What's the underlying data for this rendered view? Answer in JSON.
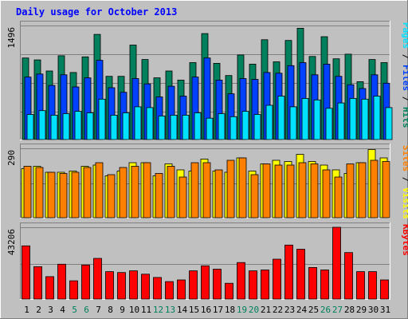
{
  "title": "Daily usage for October 2013",
  "colors": {
    "hits": "#00805c",
    "files": "#0040ff",
    "pages": "#00e0ff",
    "visits": "#ffff00",
    "sites": "#ff8000",
    "kbytes": "#ff0000",
    "title": "#0000ff",
    "weekend": "#00805c",
    "background": "#c0c0c0",
    "plot_background": "#c0c0c0"
  },
  "legend": {
    "top": [
      {
        "label": "Pages",
        "color": "#00e0ff"
      },
      {
        "label": " / ",
        "color": "#000000"
      },
      {
        "label": "Files",
        "color": "#0040ff"
      },
      {
        "label": " / ",
        "color": "#000000"
      },
      {
        "label": "Hits",
        "color": "#00805c"
      }
    ],
    "middle": [
      {
        "label": "Sites",
        "color": "#ff8000"
      },
      {
        "label": " / ",
        "color": "#000000"
      },
      {
        "label": "Visits",
        "color": "#ffff00"
      }
    ],
    "bottom": [
      {
        "label": "KBytes",
        "color": "#ff0000"
      }
    ]
  },
  "chart_data": [
    {
      "type": "bar",
      "name": "hits-files-pages",
      "ymax_label": "1496",
      "ylim": [
        0,
        1496
      ],
      "x": [
        1,
        2,
        3,
        4,
        5,
        6,
        7,
        8,
        9,
        10,
        11,
        12,
        13,
        14,
        15,
        16,
        17,
        18,
        19,
        20,
        21,
        22,
        23,
        24,
        25,
        26,
        27,
        28,
        29,
        30,
        31
      ],
      "weekend_days": [
        5,
        6,
        12,
        13,
        19,
        20,
        26,
        27
      ],
      "series": [
        {
          "name": "Hits",
          "color": "#00805c",
          "values": [
            1070,
            1045,
            900,
            1100,
            880,
            1085,
            1380,
            830,
            830,
            1240,
            1050,
            810,
            900,
            780,
            1010,
            1390,
            1000,
            840,
            1110,
            990,
            1310,
            1020,
            1300,
            1460,
            1090,
            1350,
            1060,
            1120,
            760,
            1050,
            1010
          ]
        },
        {
          "name": "Files",
          "color": "#0040ff",
          "values": [
            820,
            860,
            710,
            850,
            690,
            810,
            1040,
            680,
            620,
            800,
            730,
            560,
            700,
            570,
            820,
            1070,
            780,
            600,
            800,
            790,
            880,
            870,
            970,
            1010,
            850,
            990,
            830,
            720,
            670,
            850,
            740
          ]
        },
        {
          "name": "Pages",
          "color": "#00e0ff",
          "values": [
            330,
            380,
            320,
            340,
            370,
            350,
            530,
            320,
            350,
            430,
            420,
            310,
            320,
            320,
            350,
            280,
            340,
            300,
            370,
            330,
            450,
            570,
            430,
            540,
            520,
            410,
            480,
            540,
            530,
            570,
            420
          ]
        }
      ]
    },
    {
      "type": "bar",
      "name": "visits-sites",
      "ymax_label": "290",
      "ylim": [
        0,
        290
      ],
      "x": [
        1,
        2,
        3,
        4,
        5,
        6,
        7,
        8,
        9,
        10,
        11,
        12,
        13,
        14,
        15,
        16,
        17,
        18,
        19,
        20,
        21,
        22,
        23,
        24,
        25,
        26,
        27,
        28,
        29,
        30,
        31
      ],
      "weekend_days": [
        5,
        6,
        12,
        13,
        19,
        20,
        26,
        27
      ],
      "series": [
        {
          "name": "Visits",
          "color": "#ffff00",
          "values": [
            205,
            215,
            190,
            190,
            195,
            215,
            220,
            175,
            195,
            230,
            230,
            175,
            225,
            200,
            195,
            245,
            195,
            190,
            250,
            195,
            225,
            240,
            235,
            265,
            235,
            220,
            200,
            185,
            230,
            285,
            250
          ]
        },
        {
          "name": "Sites",
          "color": "#ff8000",
          "values": [
            215,
            210,
            190,
            185,
            190,
            210,
            230,
            180,
            210,
            215,
            230,
            185,
            215,
            170,
            230,
            230,
            200,
            240,
            250,
            180,
            225,
            220,
            220,
            230,
            225,
            200,
            170,
            225,
            230,
            240,
            235
          ]
        }
      ]
    },
    {
      "type": "bar",
      "name": "kbytes",
      "ymax_label": "43206",
      "ylim": [
        0,
        43206
      ],
      "x": [
        1,
        2,
        3,
        4,
        5,
        6,
        7,
        8,
        9,
        10,
        11,
        12,
        13,
        14,
        15,
        16,
        17,
        18,
        19,
        20,
        21,
        22,
        23,
        24,
        25,
        26,
        27,
        28,
        29,
        30,
        31
      ],
      "weekend_days": [
        5,
        6,
        12,
        13,
        19,
        20,
        26,
        27
      ],
      "series": [
        {
          "name": "KBytes",
          "color": "#ff0000",
          "values": [
            32000,
            19500,
            13500,
            21000,
            11000,
            20500,
            24500,
            16500,
            16000,
            17000,
            15000,
            13000,
            10500,
            11500,
            17000,
            20000,
            18000,
            9500,
            22000,
            17000,
            17500,
            24000,
            32500,
            30000,
            19000,
            17500,
            43206,
            28000,
            16500,
            16500,
            11500
          ]
        }
      ]
    }
  ]
}
